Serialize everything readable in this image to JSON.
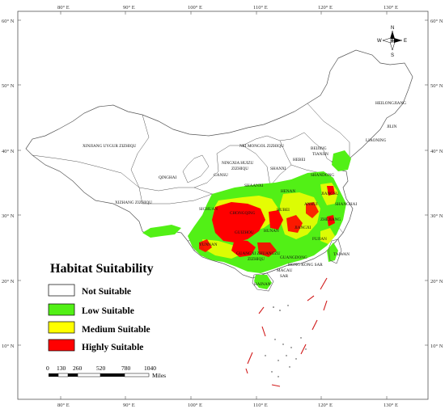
{
  "axes": {
    "top": [
      "80° E",
      "90° E",
      "100° E",
      "110° E",
      "120° E",
      "130° E"
    ],
    "bottom": [
      "80° E",
      "90° E",
      "100° E",
      "110° E",
      "120° E",
      "130° E"
    ],
    "left": [
      "60° N",
      "50° N",
      "40° N",
      "30° N",
      "20° N",
      "10° N"
    ],
    "right": [
      "60° N",
      "50° N",
      "40° N",
      "30° N",
      "20° N",
      "10° N"
    ]
  },
  "provinces": {
    "heilongjiang": "HEILONGJIANG",
    "jilin": "JILIN",
    "liaoning": "LIAONING",
    "beijing": "BEIJING",
    "tianjin": "TIANJIN",
    "hebei": "HEBEI",
    "neimongol": "NEI MONGOL ZIZHIQU",
    "xinjiang": "XINJIANG UYGUR ZIZHIQU",
    "ningxia_a": "NINGXIA HUIZU",
    "ningxia_b": "ZIZHIQU",
    "shanxi": "SHANXI",
    "shandong": "SHANDONG",
    "qinghai": "QINGHAI",
    "gansu": "GANSU",
    "shaanxi": "SHAANXI",
    "henan": "HENAN",
    "jiangsu": "JIANGSU",
    "xizang": "XIZHANG ZIZHIQU",
    "sichuan": "SICHUAN",
    "chongqing": "CHONGQING",
    "hubei": "HUBEI",
    "anhui": "ANHUI",
    "shanghai": "SHANGHAI",
    "zhejiang": "ZHEJIANG",
    "jiangxi": "JIANGXI",
    "hunan": "HUNAN",
    "guizhou": "GUIZHOU",
    "fujian": "FUJIAN",
    "yunnan": "YUNNAN",
    "taiwan": "TAIWAN",
    "guangxi_a": "GUANGXI ZHUANGZU",
    "guangxi_b": "ZIZHIQU",
    "guangdong": "GUANGDONG",
    "hongkong": "HONG KONG SAR",
    "macau_a": "MACAU",
    "macau_b": "SAR",
    "hainan": "HAINAN"
  },
  "compass": {
    "n": "N",
    "s": "S",
    "e": "E",
    "w": "W"
  },
  "legend": {
    "title": "Habitat Suitability",
    "items": [
      {
        "label": "Not Suitable",
        "color": "#ffffff"
      },
      {
        "label": "Low Suitable",
        "color": "#52f016"
      },
      {
        "label": "Medium Suitable",
        "color": "#ffff00"
      },
      {
        "label": "Highly Suitable",
        "color": "#ff0000"
      }
    ]
  },
  "scale": {
    "ticks": [
      "0",
      "130",
      "260",
      "520",
      "780",
      "1040"
    ],
    "unit": "Miles"
  },
  "colors": {
    "border": "#555555",
    "low": "#52f016",
    "medium": "#ffff00",
    "high": "#ff0000",
    "dashed_line": "#d11a1a"
  }
}
